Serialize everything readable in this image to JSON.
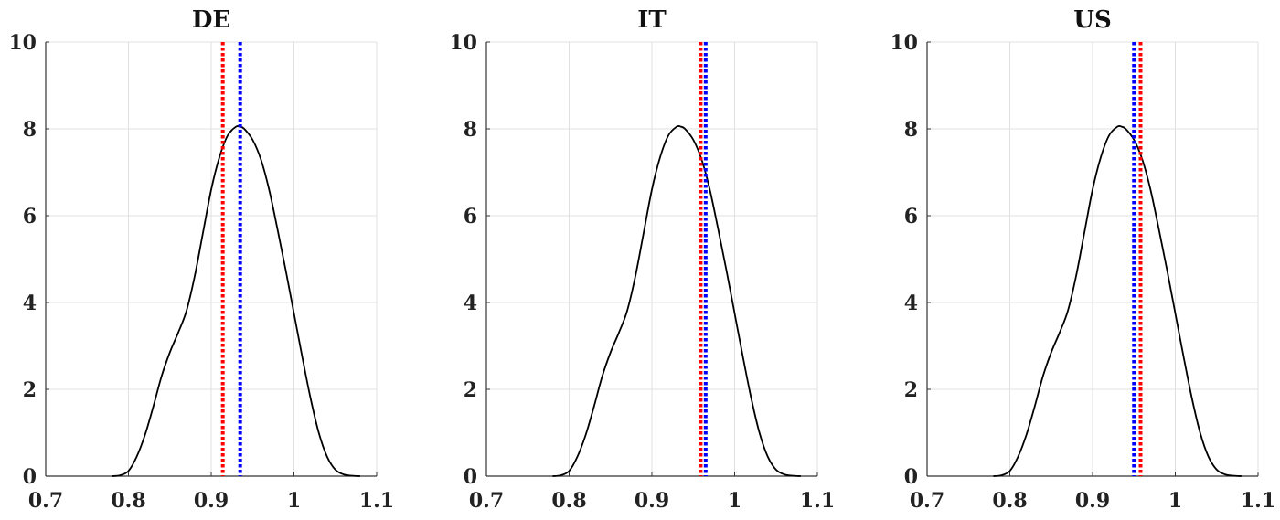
{
  "chart_data": [
    {
      "type": "line",
      "title": "DE",
      "xlim": [
        0.7,
        1.1
      ],
      "ylim": [
        0,
        10
      ],
      "xticks": [
        "0.7",
        "0.8",
        "0.9",
        "1",
        "1.1"
      ],
      "yticks": [
        "0",
        "2",
        "4",
        "6",
        "8",
        "10"
      ],
      "grid": true,
      "series": [
        {
          "x": [
            0.78,
            0.79,
            0.8,
            0.81,
            0.82,
            0.83,
            0.84,
            0.85,
            0.86,
            0.87,
            0.88,
            0.89,
            0.9,
            0.91,
            0.92,
            0.93,
            0.935,
            0.94,
            0.95,
            0.96,
            0.97,
            0.98,
            0.99,
            1.0,
            1.01,
            1.02,
            1.03,
            1.04,
            1.05,
            1.06,
            1.07,
            1.08
          ],
          "y": [
            0,
            0.02,
            0.12,
            0.45,
            0.95,
            1.6,
            2.3,
            2.85,
            3.3,
            3.8,
            4.6,
            5.6,
            6.6,
            7.35,
            7.85,
            8.05,
            8.05,
            8.0,
            7.75,
            7.3,
            6.6,
            5.7,
            4.75,
            3.75,
            2.75,
            1.8,
            1.0,
            0.45,
            0.15,
            0.04,
            0.01,
            0
          ]
        }
      ],
      "vlines": [
        {
          "x": 0.914,
          "color": "#ff0000",
          "style": "dotted"
        },
        {
          "x": 0.935,
          "color": "#0000ff",
          "style": "dotted"
        }
      ],
      "line_color": "#000000"
    },
    {
      "type": "line",
      "title": "IT",
      "xlim": [
        0.7,
        1.1
      ],
      "ylim": [
        0,
        10
      ],
      "xticks": [
        "0.7",
        "0.8",
        "0.9",
        "1",
        "1.1"
      ],
      "yticks": [
        "0",
        "2",
        "4",
        "6",
        "8",
        "10"
      ],
      "grid": true,
      "series": [
        {
          "x": [
            0.78,
            0.79,
            0.8,
            0.81,
            0.82,
            0.83,
            0.84,
            0.85,
            0.86,
            0.87,
            0.88,
            0.89,
            0.9,
            0.91,
            0.92,
            0.93,
            0.935,
            0.94,
            0.95,
            0.96,
            0.97,
            0.98,
            0.99,
            1.0,
            1.01,
            1.02,
            1.03,
            1.04,
            1.05,
            1.06,
            1.07,
            1.08
          ],
          "y": [
            0,
            0.02,
            0.12,
            0.45,
            0.95,
            1.6,
            2.3,
            2.85,
            3.3,
            3.8,
            4.6,
            5.6,
            6.6,
            7.35,
            7.85,
            8.05,
            8.05,
            8.0,
            7.75,
            7.3,
            6.6,
            5.7,
            4.75,
            3.75,
            2.75,
            1.8,
            1.0,
            0.45,
            0.15,
            0.04,
            0.01,
            0
          ]
        }
      ],
      "vlines": [
        {
          "x": 0.959,
          "color": "#ff0000",
          "style": "dotted"
        },
        {
          "x": 0.965,
          "color": "#0000ff",
          "style": "dotted"
        }
      ],
      "line_color": "#000000"
    },
    {
      "type": "line",
      "title": "US",
      "xlim": [
        0.7,
        1.1
      ],
      "ylim": [
        0,
        10
      ],
      "xticks": [
        "0.7",
        "0.8",
        "0.9",
        "1",
        "1.1"
      ],
      "yticks": [
        "0",
        "2",
        "4",
        "6",
        "8",
        "10"
      ],
      "grid": true,
      "series": [
        {
          "x": [
            0.78,
            0.79,
            0.8,
            0.81,
            0.82,
            0.83,
            0.84,
            0.85,
            0.86,
            0.87,
            0.88,
            0.89,
            0.9,
            0.91,
            0.92,
            0.93,
            0.935,
            0.94,
            0.95,
            0.96,
            0.97,
            0.98,
            0.99,
            1.0,
            1.01,
            1.02,
            1.03,
            1.04,
            1.05,
            1.06,
            1.07,
            1.08
          ],
          "y": [
            0,
            0.02,
            0.12,
            0.45,
            0.95,
            1.6,
            2.3,
            2.85,
            3.3,
            3.8,
            4.6,
            5.6,
            6.6,
            7.35,
            7.85,
            8.05,
            8.05,
            8.0,
            7.75,
            7.3,
            6.6,
            5.7,
            4.75,
            3.75,
            2.75,
            1.8,
            1.0,
            0.45,
            0.15,
            0.04,
            0.01,
            0
          ]
        }
      ],
      "vlines": [
        {
          "x": 0.958,
          "color": "#ff0000",
          "style": "dotted"
        },
        {
          "x": 0.95,
          "color": "#0000ff",
          "style": "dotted"
        }
      ],
      "line_color": "#000000"
    }
  ]
}
